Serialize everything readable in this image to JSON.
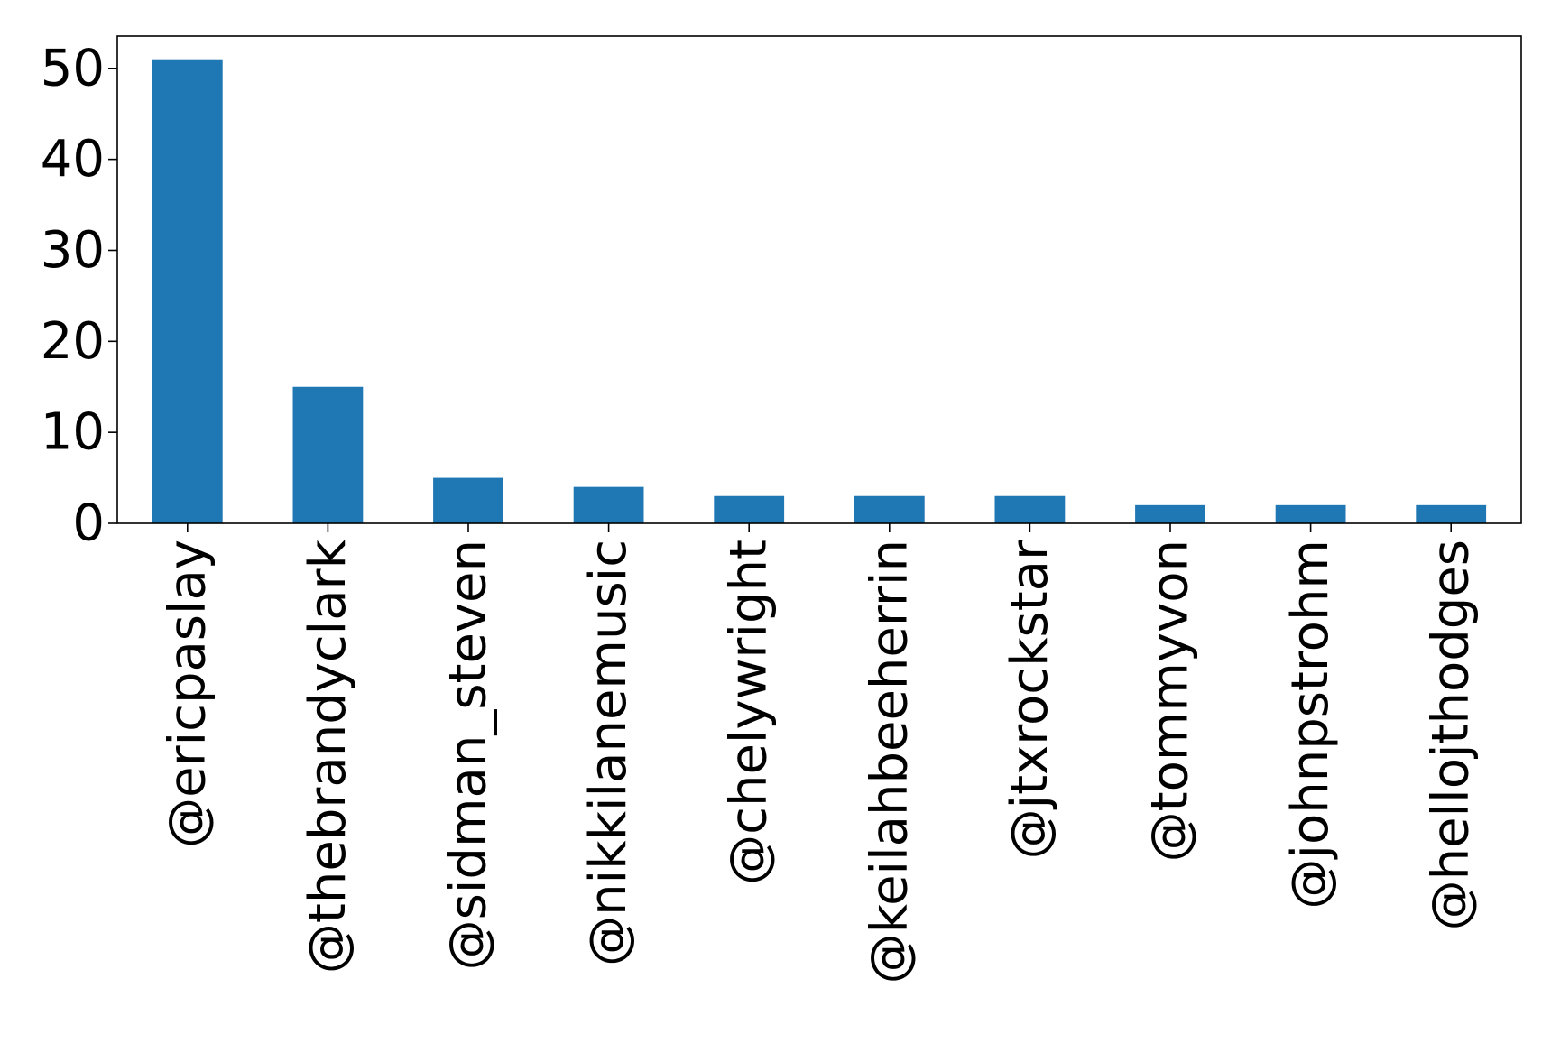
{
  "chart_data": {
    "type": "bar",
    "title": "",
    "xlabel": "",
    "ylabel": "",
    "categories": [
      "@ericpaslay",
      "@thebrandyclark",
      "@sidman_steven",
      "@nikkilanemusic",
      "@chelywright",
      "@keilahbeeherrin",
      "@jtxrockstar",
      "@tommyvon",
      "@johnpstrohm",
      "@hellojthodges"
    ],
    "values": [
      51,
      15,
      5,
      4,
      3,
      3,
      3,
      2,
      2,
      2
    ],
    "ylim": [
      0,
      53.55
    ],
    "yticks": [
      0,
      10,
      20,
      30,
      40,
      50
    ],
    "grid": false,
    "legend": "none",
    "bar_color": "#1f77b4",
    "axis_color": "#000000"
  }
}
